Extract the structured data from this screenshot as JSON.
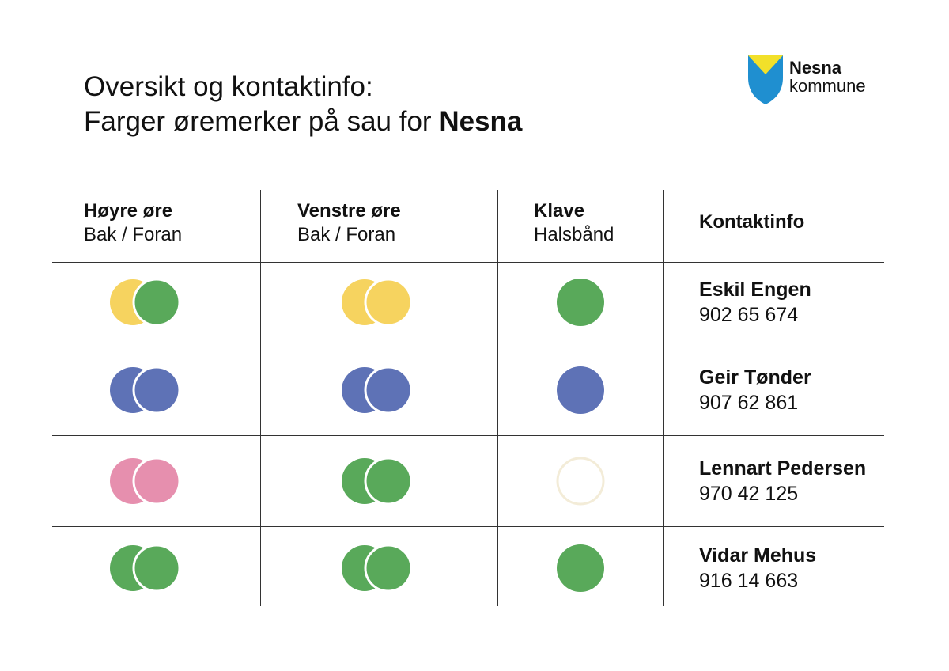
{
  "title": {
    "line1": "Oversikt og kontaktinfo:",
    "line2_prefix": "Farger øremerker på sau for ",
    "line2_bold": "Nesna"
  },
  "logo": {
    "line1": "Nesna",
    "line2": "kommune",
    "colors": {
      "yellow": "#f2e02a",
      "blue": "#1f8fd0"
    }
  },
  "headers": [
    {
      "title": "Høyre øre",
      "sub": "Bak / Foran"
    },
    {
      "title": "Venstre øre",
      "sub": "Bak / Foran"
    },
    {
      "title": "Klave",
      "sub": "Halsbånd"
    },
    {
      "title": "Kontaktinfo",
      "sub": ""
    }
  ],
  "palette": {
    "yellow": "#f6d35f",
    "green": "#59a95a",
    "blue": "#5e72b6",
    "pink": "#e68fae",
    "white": "#ffffff"
  },
  "rows": [
    {
      "right": [
        "yellow",
        "green"
      ],
      "left": [
        "yellow",
        "yellow"
      ],
      "collar": "green",
      "name": "Eskil Engen",
      "phone": "902 65 674"
    },
    {
      "right": [
        "blue",
        "blue"
      ],
      "left": [
        "blue",
        "blue"
      ],
      "collar": "blue",
      "name": "Geir Tønder",
      "phone": "907 62 861"
    },
    {
      "right": [
        "pink",
        "pink"
      ],
      "left": [
        "green",
        "green"
      ],
      "collar": "white",
      "name": "Lennart Pedersen",
      "phone": "970 42 125"
    },
    {
      "right": [
        "green",
        "green"
      ],
      "left": [
        "green",
        "green"
      ],
      "collar": "green",
      "name": "Vidar Mehus",
      "phone": "916 14 663"
    }
  ]
}
